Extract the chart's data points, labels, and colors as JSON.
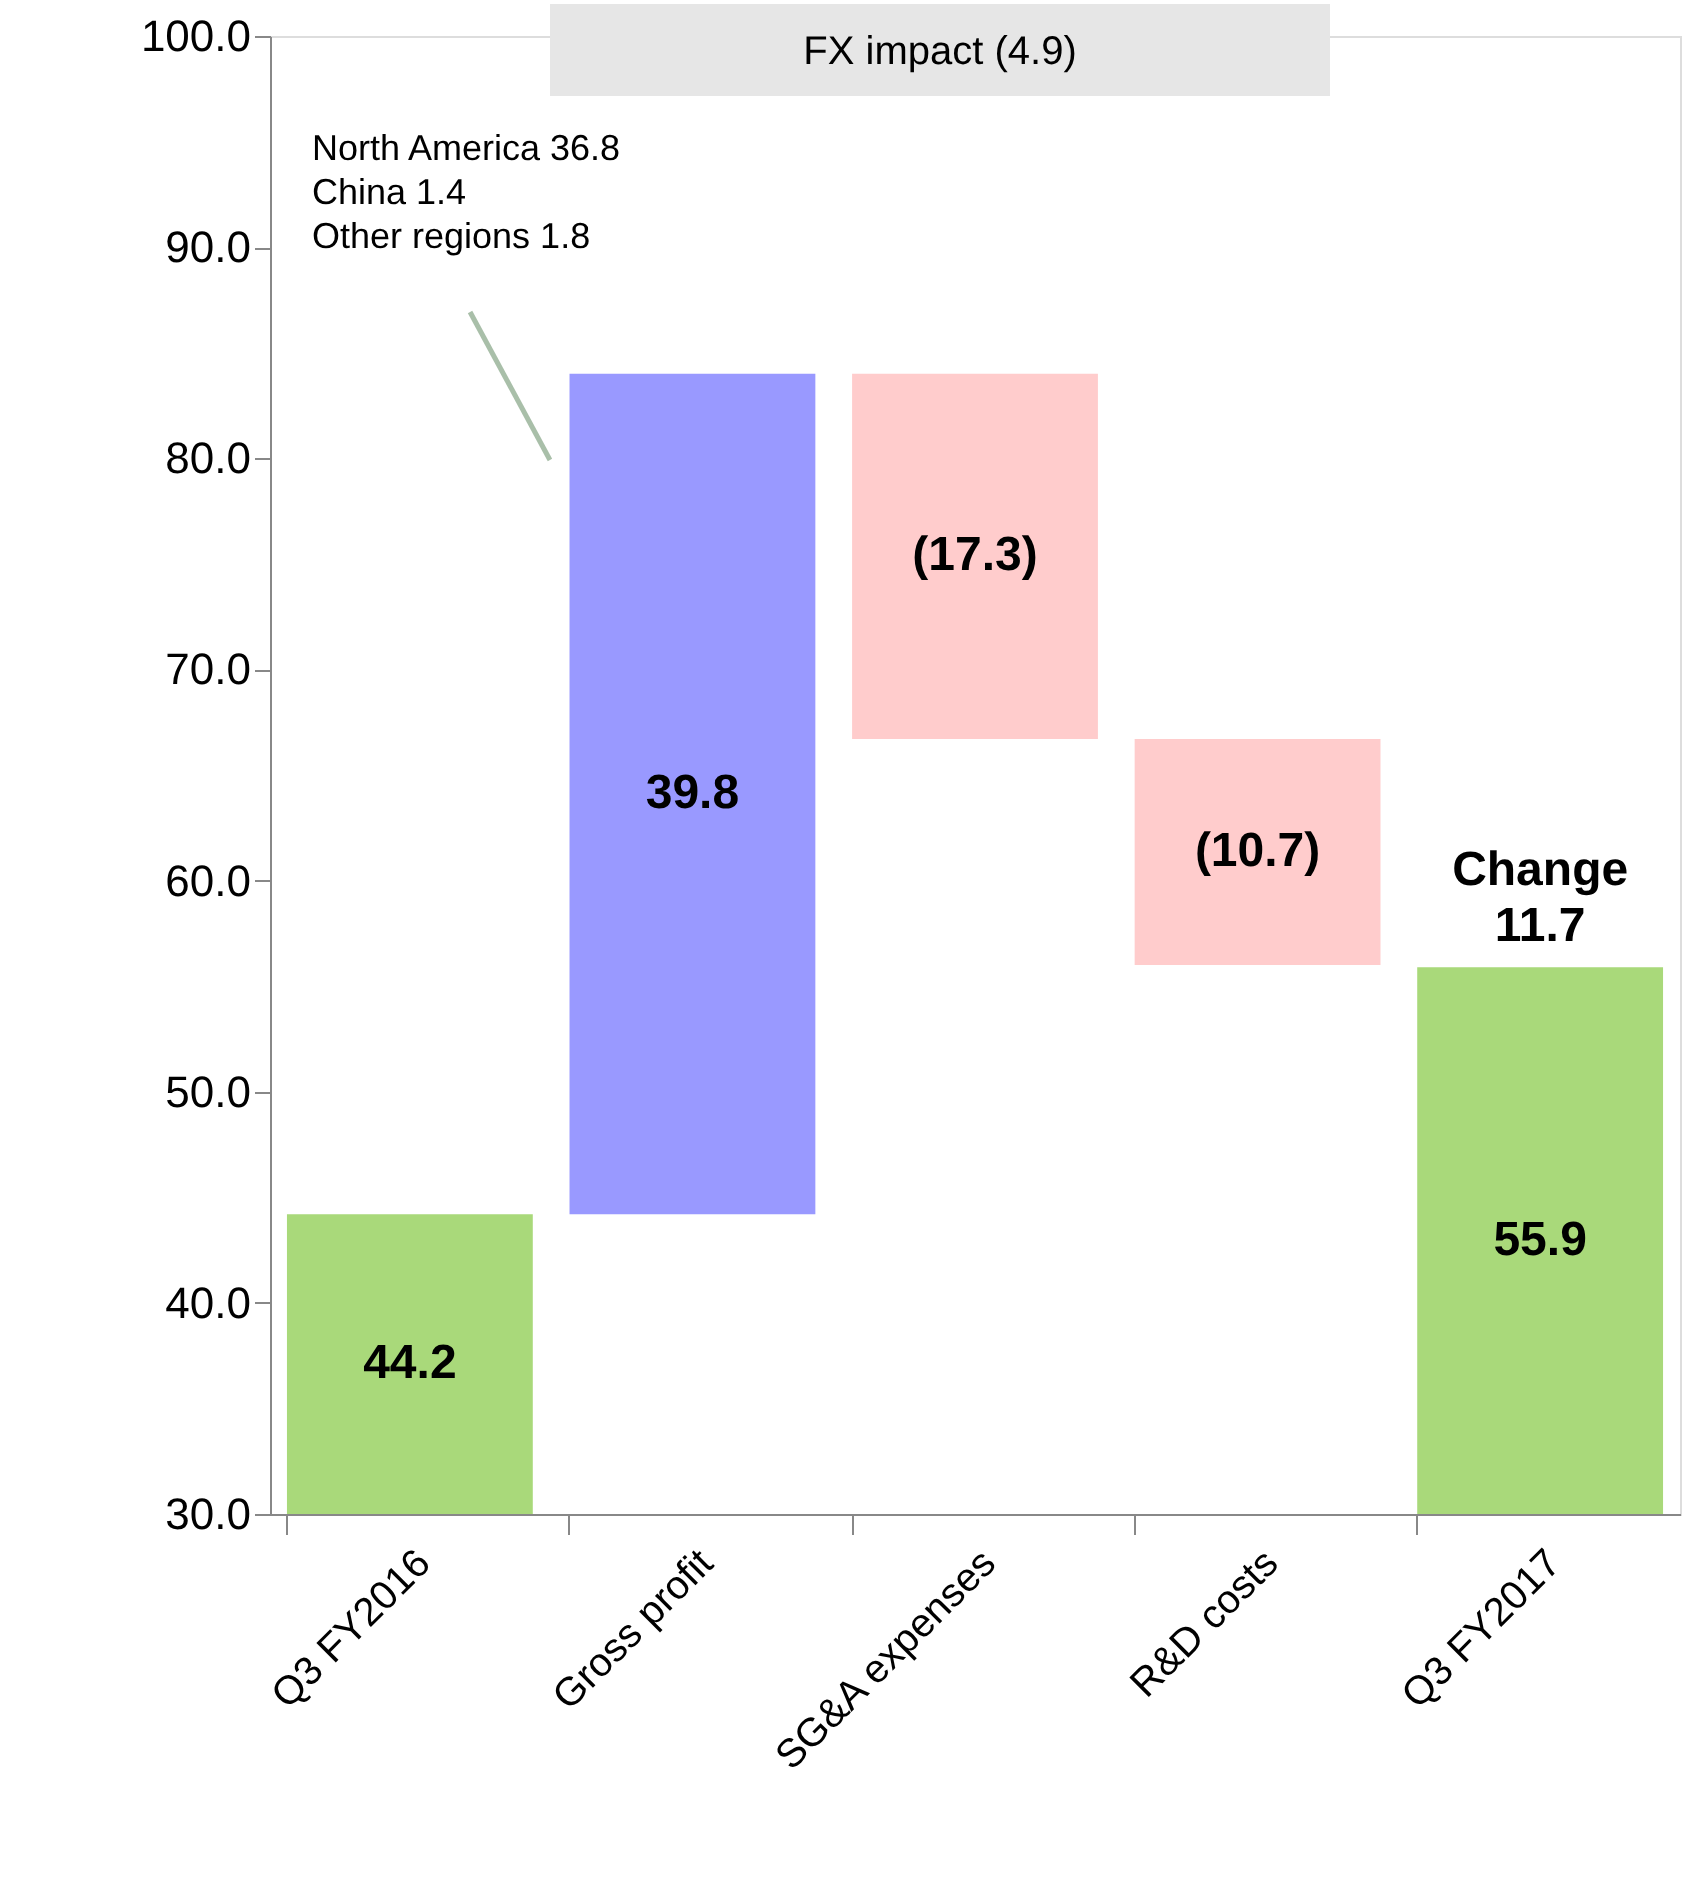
{
  "chart_data": {
    "type": "bar",
    "categories": [
      "Q3 FY2016",
      "Gross profit",
      "SG&A expenses",
      "R&D costs",
      "Q3 FY2017"
    ],
    "values": [
      44.2,
      39.8,
      -17.3,
      -10.7,
      55.9
    ],
    "base": [
      null,
      44.2,
      84.0,
      66.7,
      null
    ],
    "colors": [
      "#a9d97a",
      "#9999ff",
      "#ffcccc",
      "#ffcccc",
      "#a9d97a"
    ],
    "value_labels": [
      "44.2",
      "39.8",
      "(17.3)",
      "(10.7)",
      "55.9"
    ],
    "ylim": [
      30,
      100
    ],
    "yticks": [
      {
        "value": 30,
        "label": "30.0"
      },
      {
        "value": 40,
        "label": "40.0"
      },
      {
        "value": 50,
        "label": "50.0"
      },
      {
        "value": 60,
        "label": "60.0"
      },
      {
        "value": 70,
        "label": "70.0"
      },
      {
        "value": 80,
        "label": "80.0"
      },
      {
        "value": 90,
        "label": "90.0"
      },
      {
        "value": 100,
        "label": "100.0"
      }
    ],
    "annotations": [
      "FX impact (4.9)",
      "North America  36.8\nChina 1.4\nOther regions 1.8",
      "Change\n11.7"
    ],
    "grid": false
  }
}
